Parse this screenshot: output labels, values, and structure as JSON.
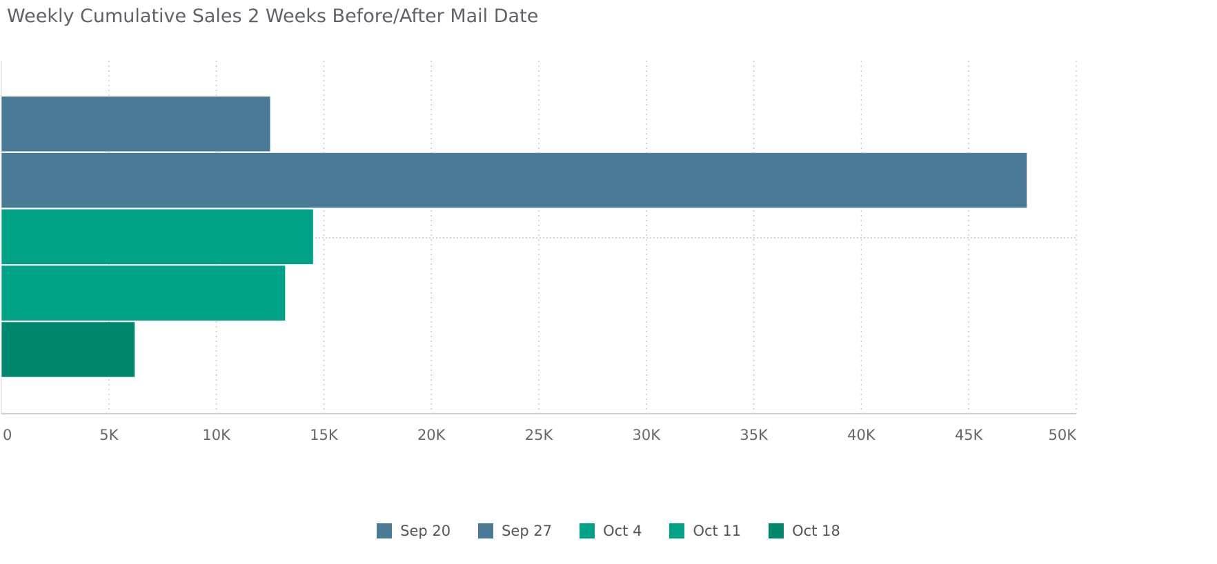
{
  "chart_data": {
    "type": "bar",
    "orientation": "horizontal",
    "title": "Weekly Cumulative Sales 2 Weeks Before/After Mail Date",
    "categories": [
      "Sep 20",
      "Sep 27",
      "Oct 4",
      "Oct 11",
      "Oct 18"
    ],
    "values": [
      12500,
      47700,
      14500,
      13200,
      6200
    ],
    "colors": [
      "#4a7a96",
      "#4a7a96",
      "#00a287",
      "#00a287",
      "#00886f"
    ],
    "xlim": [
      0,
      50000
    ],
    "xticks": [
      "0",
      "5K",
      "10K",
      "15K",
      "20K",
      "25K",
      "30K",
      "35K",
      "40K",
      "45K",
      "50K"
    ],
    "grid": "vertical-dotted",
    "legend_position": "bottom-center"
  }
}
